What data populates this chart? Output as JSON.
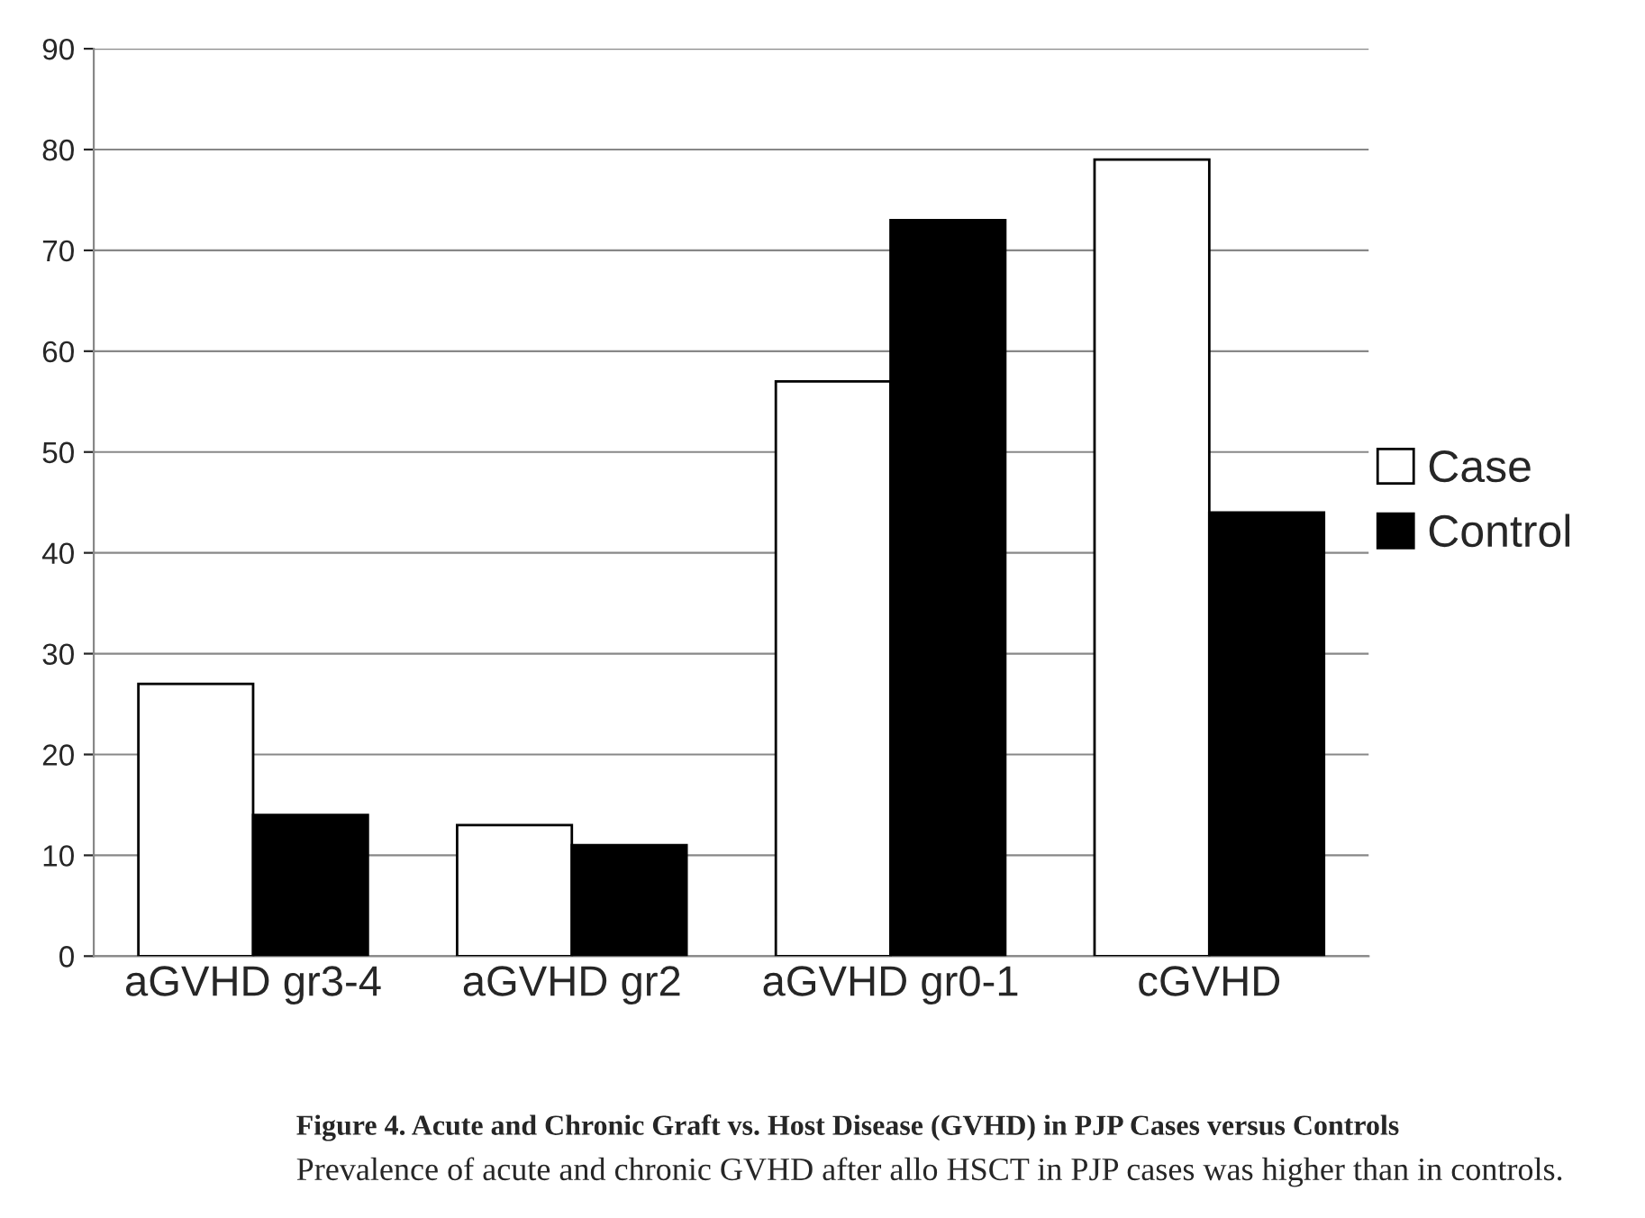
{
  "chart_data": {
    "type": "bar",
    "categories": [
      "aGVHD gr3-4",
      "aGVHD gr2",
      "aGVHD gr0-1",
      "cGVHD"
    ],
    "series": [
      {
        "name": "Case",
        "color": "#ffffff",
        "values": [
          27,
          13,
          57,
          79
        ]
      },
      {
        "name": "Control",
        "color": "#000000",
        "values": [
          14,
          11,
          73,
          44
        ]
      }
    ],
    "ylim": [
      0,
      90
    ],
    "yticks": [
      0,
      10,
      20,
      30,
      40,
      50,
      60,
      70,
      80,
      90
    ],
    "grid": "y",
    "legend": "right",
    "annotations": [
      "Figure 4. Acute and Chronic Graft vs. Host Disease (GVHD) in PJP Cases versus Controls",
      "Prevalence of acute and chronic GVHD after allo HSCT in PJP cases was higher than in controls."
    ]
  }
}
